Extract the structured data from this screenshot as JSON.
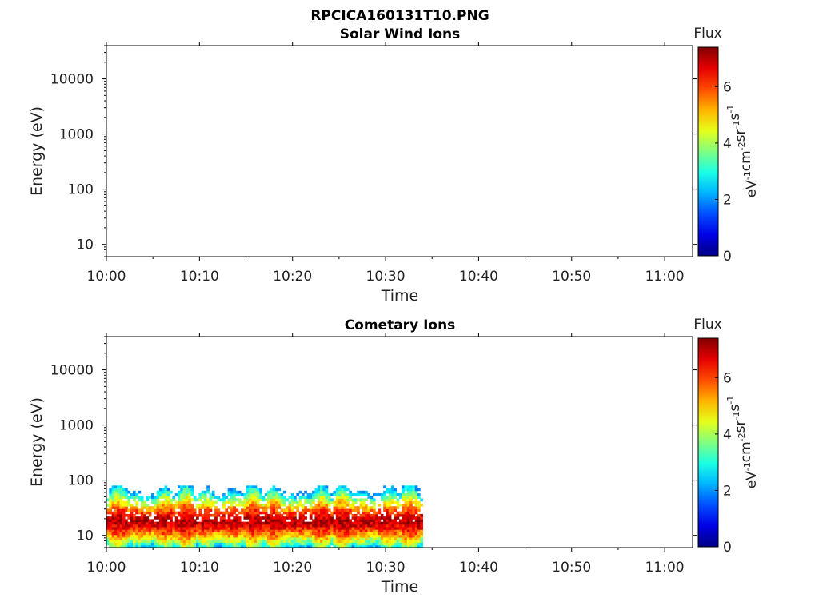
{
  "figure": {
    "title": "RPCICA160131T10.PNG"
  },
  "chart_data": [
    {
      "type": "heatmap",
      "title": "Solar Wind Ions",
      "xlabel": "Time",
      "ylabel": "Energy (eV)",
      "x_ticks": [
        "10:00",
        "10:10",
        "10:20",
        "10:30",
        "10:40",
        "10:50",
        "11:00"
      ],
      "xlim": [
        "10:00",
        "11:03"
      ],
      "y_scale": "log",
      "y_ticks": [
        10,
        100,
        1000,
        10000
      ],
      "y_tick_labels": [
        "10",
        "100",
        "1000",
        "10000"
      ],
      "ylim": [
        6,
        40000
      ],
      "colorbar": {
        "title": "Flux",
        "label": "eV-1cm-2sr-1s-1",
        "label_parts": [
          [
            "eV",
            "-1"
          ],
          [
            "cm",
            "-2"
          ],
          [
            "sr",
            "-1"
          ],
          [
            "s",
            "-1"
          ]
        ],
        "ticks": [
          0,
          2,
          4,
          6
        ],
        "tick_labels": [
          "0",
          "2",
          "4",
          "6"
        ],
        "range": [
          0,
          7.4
        ],
        "colormap": "jet"
      },
      "data": []
    },
    {
      "type": "heatmap",
      "title": "Cometary Ions",
      "xlabel": "Time",
      "ylabel": "Energy (eV)",
      "x_ticks": [
        "10:00",
        "10:10",
        "10:20",
        "10:30",
        "10:40",
        "10:50",
        "11:00"
      ],
      "xlim": [
        "10:00",
        "11:03"
      ],
      "y_scale": "log",
      "y_ticks": [
        10,
        100,
        1000,
        10000
      ],
      "y_tick_labels": [
        "10",
        "100",
        "1000",
        "10000"
      ],
      "ylim": [
        6,
        40000
      ],
      "colorbar": {
        "title": "Flux",
        "label": "eV-1cm-2sr-1s-1",
        "label_parts": [
          [
            "eV",
            "-1"
          ],
          [
            "cm",
            "-2"
          ],
          [
            "sr",
            "-1"
          ],
          [
            "s",
            "-1"
          ]
        ],
        "ticks": [
          0,
          2,
          4,
          6
        ],
        "tick_labels": [
          "0",
          "2",
          "4",
          "6"
        ],
        "range": [
          0,
          7.4
        ],
        "colormap": "jet"
      },
      "data": {
        "time_range": [
          "10:00",
          "10:34"
        ],
        "energy_range": [
          6,
          80
        ],
        "peak_energy": 18,
        "peak_flux": 7,
        "edge_flux": 2.5
      }
    }
  ]
}
